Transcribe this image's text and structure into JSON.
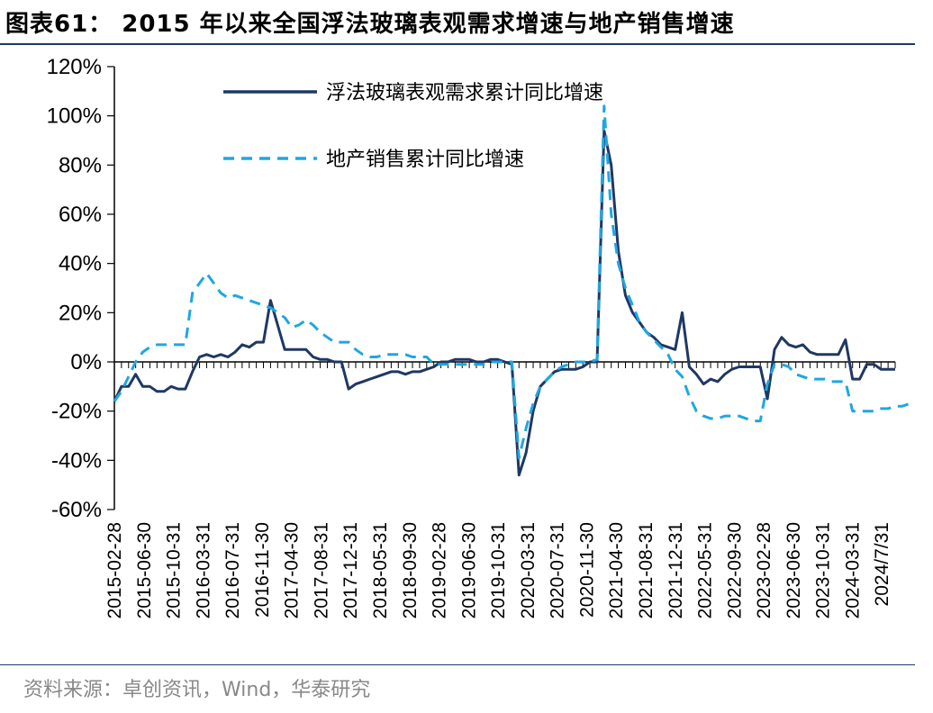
{
  "title": "图表61：  2015 年以来全国浮法玻璃表观需求增速与地产销售增速",
  "source": "资料来源：卓创资讯，Wind，华泰研究",
  "chart_data": {
    "type": "line",
    "title": "2015 年以来全国浮法玻璃表观需求增速与地产销售增速",
    "xlabel": "",
    "ylabel": "",
    "ylim": [
      -60,
      120
    ],
    "yticks": [
      "120%",
      "100%",
      "80%",
      "60%",
      "40%",
      "20%",
      "0%",
      "-20%",
      "-40%",
      "-60%"
    ],
    "ytick_values": [
      120,
      100,
      80,
      60,
      40,
      20,
      0,
      -20,
      -40,
      -60
    ],
    "x_tick_labels": [
      "2015-02-28",
      "2015-06-30",
      "2015-10-31",
      "2016-03-31",
      "2016-07-31",
      "2016-11-30",
      "2017-04-30",
      "2017-08-31",
      "2017-12-31",
      "2018-05-31",
      "2018-09-30",
      "2019-02-28",
      "2019-06-30",
      "2019-10-31",
      "2020-03-31",
      "2020-07-31",
      "2020-11-30",
      "2021-04-30",
      "2021-08-31",
      "2021-12-31",
      "2022-05-31",
      "2022-09-30",
      "2023-02-28",
      "2023-06-30",
      "2023-10-31",
      "2024-03-31",
      "2024/7/31"
    ],
    "legend_position": "top-center",
    "series": [
      {
        "name": "浮法玻璃表观需求累计同比增速",
        "color": "#1f3864",
        "style": "solid",
        "values": [
          -16,
          -10,
          -10,
          -5,
          -10,
          -10,
          -12,
          -12,
          -10,
          -11,
          -11,
          -4,
          2,
          3,
          2,
          3,
          2,
          4,
          7,
          6,
          8,
          8,
          25,
          15,
          5,
          5,
          5,
          5,
          2,
          1,
          1,
          0,
          0,
          -11,
          -9,
          -8,
          -7,
          -6,
          -5,
          -4,
          -4,
          -5,
          -4,
          -4,
          -3,
          -2,
          0,
          0,
          1,
          1,
          1,
          0,
          0,
          1,
          1,
          0,
          -1,
          -46,
          -37,
          -20,
          -10,
          -7,
          -4,
          -3,
          -3,
          -3,
          -2,
          0,
          0,
          94,
          80,
          45,
          27,
          20,
          16,
          12,
          10,
          7,
          6,
          5,
          20,
          -2,
          -5,
          -9,
          -7,
          -8,
          -5,
          -3,
          -2,
          -2,
          -2,
          -2,
          -15,
          5,
          10,
          7,
          6,
          7,
          4,
          3,
          3,
          3,
          3,
          9,
          -7,
          -7,
          -1,
          -1,
          -3,
          -3,
          -3
        ]
      },
      {
        "name": "地产销售累计同比增速",
        "color": "#1ea7e1",
        "style": "dashed",
        "values": [
          -16,
          -12,
          -6,
          0,
          4,
          6,
          7,
          7,
          7,
          7,
          7,
          28,
          32,
          36,
          32,
          28,
          26,
          27,
          26,
          25,
          24,
          23,
          22,
          20,
          18,
          14,
          15,
          17,
          15,
          12,
          10,
          8,
          8,
          8,
          5,
          3,
          2,
          2,
          3,
          3,
          3,
          3,
          2,
          2,
          2,
          -1,
          -1,
          -1,
          -1,
          -1,
          -1,
          -1,
          -1,
          0,
          0,
          0,
          0,
          -39,
          -27,
          -17,
          -10,
          -7,
          -4,
          -2,
          -1,
          0,
          0,
          0,
          1,
          104,
          60,
          40,
          30,
          23,
          16,
          12,
          9,
          6,
          3,
          -3,
          -6,
          -14,
          -20,
          -22,
          -23,
          -23,
          -22,
          -22,
          -22,
          -23,
          -24,
          -24,
          -9,
          -1,
          -1,
          -2,
          -5,
          -6,
          -7,
          -7,
          -7,
          -8,
          -8,
          -8,
          -20,
          -20,
          -20,
          -20,
          -19,
          -19,
          -18,
          -18,
          -17
        ]
      }
    ]
  }
}
